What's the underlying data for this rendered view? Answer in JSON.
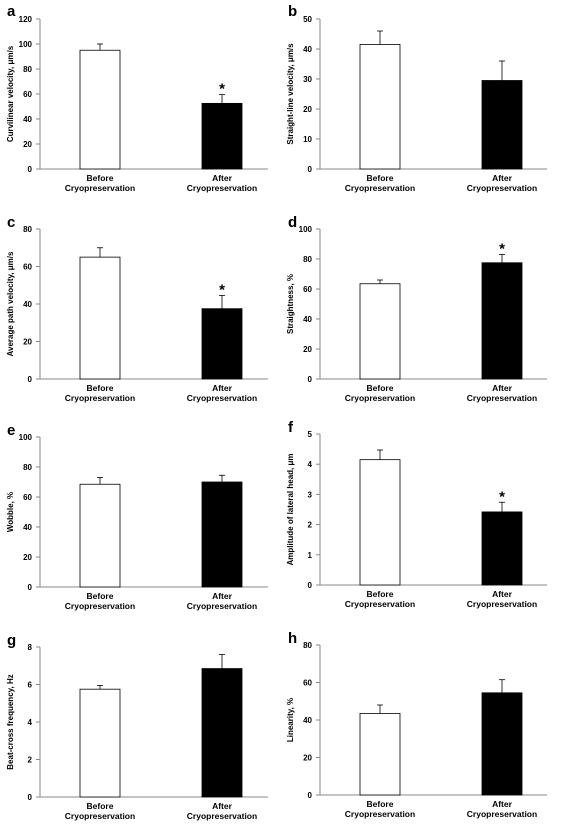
{
  "chart_data": [
    {
      "panel": "a",
      "type": "bar",
      "categories": [
        [
          "Before",
          "Cryopreservation"
        ],
        [
          "After",
          "Cryopreservation"
        ]
      ],
      "values": [
        95,
        52.5
      ],
      "errors": [
        5,
        7
      ],
      "bar_colors": [
        "#ffffff",
        "#000000"
      ],
      "significance": [
        "",
        "*"
      ],
      "ylabel": "Curvilinear velocity, μm/s",
      "ylim": [
        0,
        120
      ],
      "yticks": [
        "0",
        "20",
        "40",
        "60",
        "80",
        "100",
        "120"
      ]
    },
    {
      "panel": "b",
      "type": "bar",
      "categories": [
        [
          "Before",
          "Cryopreservation"
        ],
        [
          "After",
          "Cryopreservation"
        ]
      ],
      "values": [
        41.5,
        29.5
      ],
      "errors": [
        4.5,
        6.5
      ],
      "bar_colors": [
        "#ffffff",
        "#000000"
      ],
      "significance": [
        "",
        ""
      ],
      "ylabel": "Straight-line velocity, μm/s",
      "ylim": [
        0,
        50
      ],
      "yticks": [
        "0",
        "10",
        "20",
        "30",
        "40",
        "50"
      ]
    },
    {
      "panel": "c",
      "type": "bar",
      "categories": [
        [
          "Before",
          "Cryopreservation"
        ],
        [
          "After",
          "Cryopreservation"
        ]
      ],
      "values": [
        65,
        37.5
      ],
      "errors": [
        5,
        7
      ],
      "bar_colors": [
        "#ffffff",
        "#000000"
      ],
      "significance": [
        "",
        "*"
      ],
      "ylabel": "Average path velocity, μm/s",
      "ylim": [
        0,
        80
      ],
      "yticks": [
        "0",
        "20",
        "40",
        "60",
        "80"
      ]
    },
    {
      "panel": "d",
      "type": "bar",
      "categories": [
        [
          "Before",
          "Cryopreservation"
        ],
        [
          "After",
          "Cryopreservation"
        ]
      ],
      "values": [
        63.5,
        77.5
      ],
      "errors": [
        2.5,
        5.5
      ],
      "bar_colors": [
        "#ffffff",
        "#000000"
      ],
      "significance": [
        "",
        "*"
      ],
      "ylabel": "Straightness, %",
      "ylim": [
        0,
        100
      ],
      "yticks": [
        "0",
        "20",
        "40",
        "60",
        "80",
        "100"
      ]
    },
    {
      "panel": "e",
      "type": "bar",
      "categories": [
        [
          "Before",
          "Cryopreservation"
        ],
        [
          "After",
          "Cryopreservation"
        ]
      ],
      "values": [
        68.5,
        70
      ],
      "errors": [
        4.5,
        4.5
      ],
      "bar_colors": [
        "#ffffff",
        "#000000"
      ],
      "significance": [
        "",
        ""
      ],
      "ylabel": "Wobble, %",
      "ylim": [
        0,
        100
      ],
      "yticks": [
        "0",
        "20",
        "40",
        "60",
        "80",
        "100"
      ]
    },
    {
      "panel": "f",
      "type": "bar",
      "categories": [
        [
          "Before",
          "Cryopreservation"
        ],
        [
          "After",
          "Cryopreservation"
        ]
      ],
      "values": [
        4.15,
        2.42
      ],
      "errors": [
        0.32,
        0.32
      ],
      "bar_colors": [
        "#ffffff",
        "#000000"
      ],
      "significance": [
        "",
        "*"
      ],
      "ylabel": "Amplitude of lateral head, μm",
      "ylim": [
        0,
        5
      ],
      "yticks": [
        "0",
        "1",
        "2",
        "3",
        "4",
        "5"
      ]
    },
    {
      "panel": "g",
      "type": "bar",
      "categories": [
        [
          "Before",
          "Cryopreservation"
        ],
        [
          "After",
          "Cryopreservation"
        ]
      ],
      "values": [
        5.75,
        6.85
      ],
      "errors": [
        0.2,
        0.75
      ],
      "bar_colors": [
        "#ffffff",
        "#000000"
      ],
      "significance": [
        "",
        ""
      ],
      "ylabel": "Beat-cross frequency, Hz",
      "ylim": [
        0,
        8
      ],
      "yticks": [
        "0",
        "2",
        "4",
        "6",
        "8"
      ]
    },
    {
      "panel": "h",
      "type": "bar",
      "categories": [
        [
          "Before",
          "Cryopreservation"
        ],
        [
          "After",
          "Cryopreservation"
        ]
      ],
      "values": [
        43.5,
        54.5
      ],
      "errors": [
        4.5,
        7
      ],
      "bar_colors": [
        "#ffffff",
        "#000000"
      ],
      "significance": [
        "",
        ""
      ],
      "ylabel": "Linearity, %",
      "ylim": [
        0,
        80
      ],
      "yticks": [
        "0",
        "20",
        "40",
        "60",
        "80"
      ]
    }
  ]
}
